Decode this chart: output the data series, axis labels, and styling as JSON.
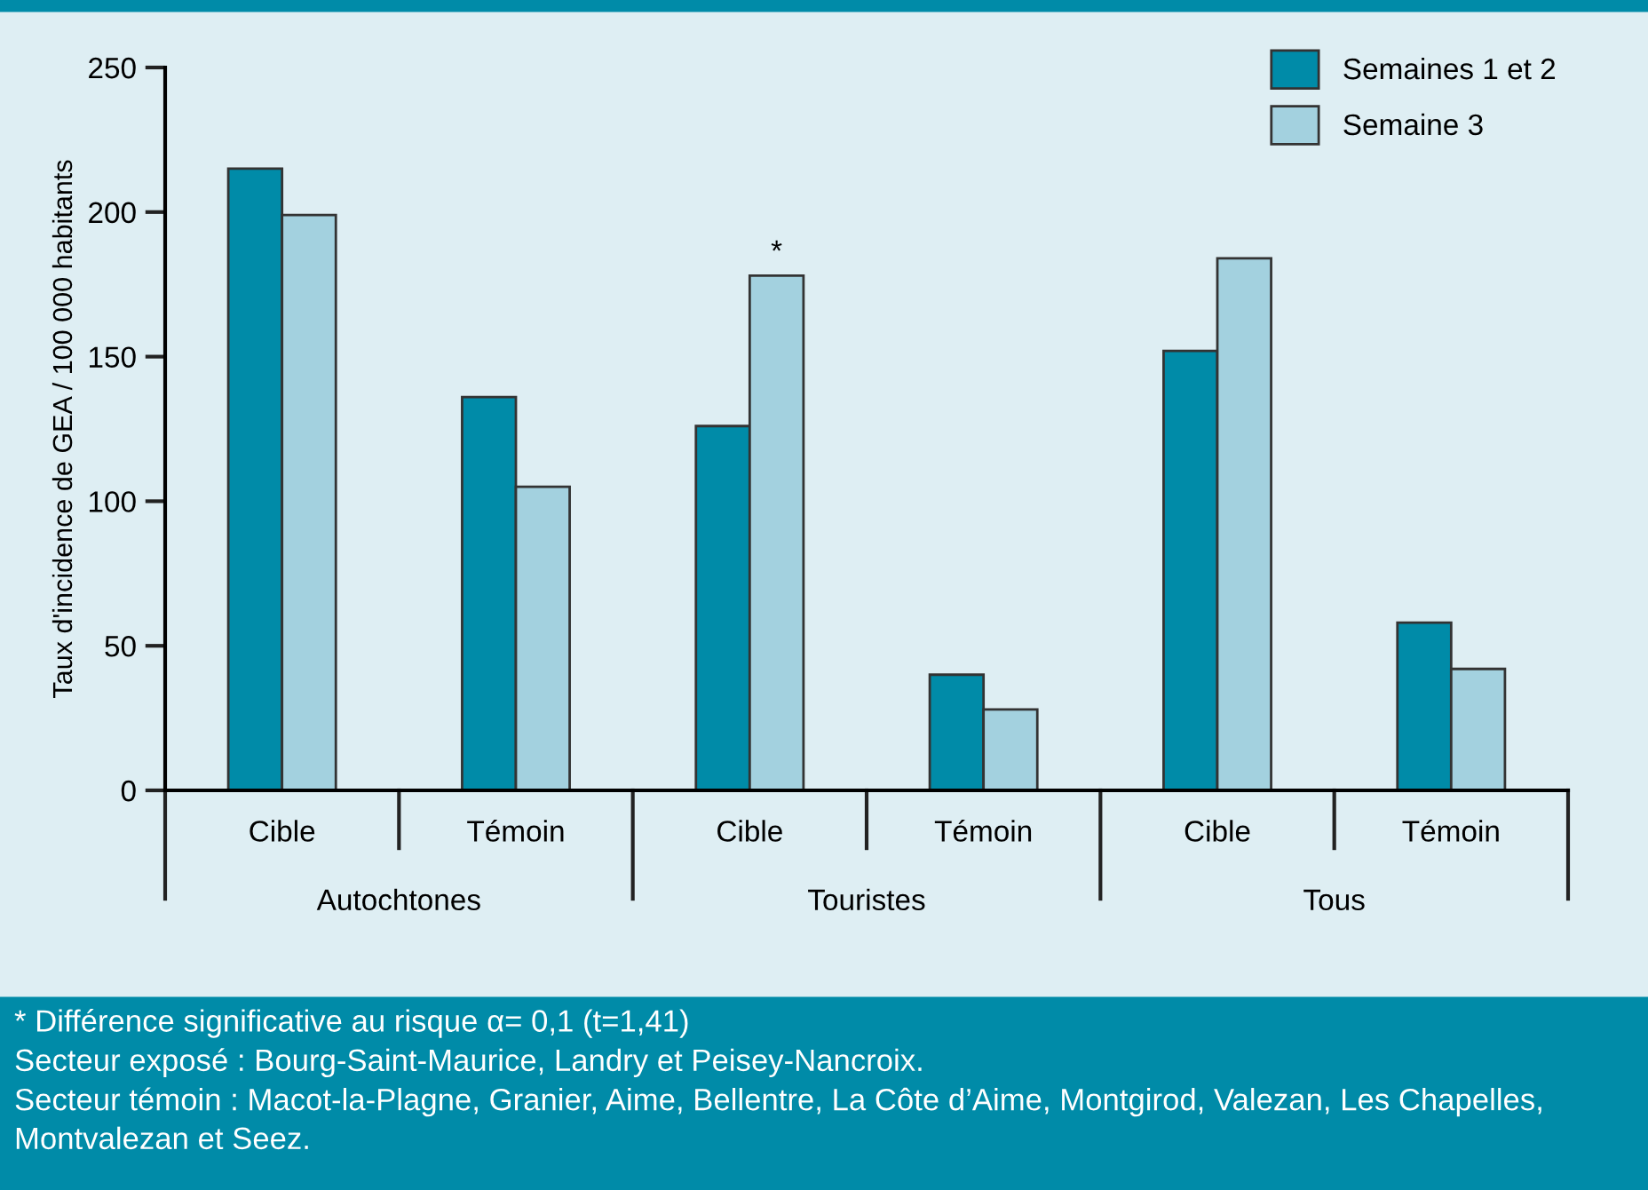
{
  "chart_data": {
    "type": "bar",
    "categories": [
      "Cible",
      "Témoin",
      "Cible",
      "Témoin",
      "Cible",
      "Témoin"
    ],
    "series": [
      {
        "name": "Semaines 1 et 2",
        "color": "#008ba8",
        "values": [
          215,
          136,
          126,
          40,
          152,
          58
        ]
      },
      {
        "name": "Semaine 3",
        "color": "#a3d1df",
        "values": [
          199,
          105,
          178,
          28,
          184,
          42
        ]
      }
    ],
    "ylabel": "Taux d'incidence de GEA / 100 000 habitants",
    "ylim": [
      0,
      250
    ],
    "yticks": [
      0,
      50,
      100,
      150,
      200,
      250
    ],
    "grid": false,
    "legend": "top right",
    "annotations": [
      "Autochtones",
      "Touristes",
      "Tous",
      {
        "text": "*",
        "y": 178
      },
      "* Différence significative au risque α= 0,1 (t=1,41)",
      "Secteur exposé : Bourg-Saint-Maurice, Landry et Peisey-Nancroix.",
      "Secteur témoin : Macot-la-Plagne, Granier, Aime, Bellentre, La Côte d’Aime, Montgirod, Valezan, Les Chapelles, Montvalezan et Seez."
    ]
  }
}
